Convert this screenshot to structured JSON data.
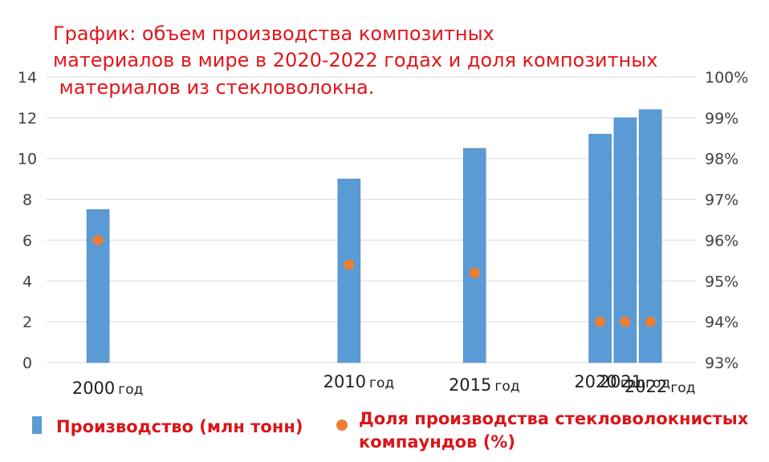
{
  "colors": {
    "title": "#e3151a",
    "bar": "#5b9bd5",
    "bar_stroke": "#4a86c0",
    "point": "#ed7d31",
    "legend_text": "#d8161b",
    "grid": "#d9d9d9",
    "axis_text": "#404040"
  },
  "chart_data": {
    "type": "bar",
    "title_lines": [
      "График: объем производства композитных",
      "материалов в мире в 2020-2022 годах и доля композитных",
      " материалов из стекловолокна."
    ],
    "categories": [
      {
        "year": "2000",
        "unit": "год"
      },
      {
        "year": "2010",
        "unit": "год"
      },
      {
        "year": "2015",
        "unit": "год"
      },
      {
        "year": "2020",
        "unit": "год"
      },
      {
        "year": "2021",
        "unit": "год"
      },
      {
        "year": "2022",
        "unit": "год"
      }
    ],
    "category_x_positions": [
      2000,
      2010,
      2015,
      2020,
      2021,
      2022
    ],
    "series": [
      {
        "name": "Производство (млн тонн)",
        "type": "bar",
        "axis": "left",
        "values": [
          7.5,
          9.0,
          10.5,
          11.2,
          12.0,
          12.4
        ]
      },
      {
        "name_lines": [
          "Доля производства стекловолокнистых",
          "компаундов (%)"
        ],
        "type": "scatter",
        "axis": "right",
        "values": [
          96.0,
          95.4,
          95.2,
          94.0,
          94.0,
          94.0
        ]
      }
    ],
    "y_left": {
      "min": 0,
      "max": 14,
      "ticks": [
        0,
        2,
        4,
        6,
        8,
        10,
        12,
        14
      ],
      "tick_labels": [
        "0",
        "2",
        "4",
        "6",
        "8",
        "10",
        "12",
        "14"
      ]
    },
    "y_right": {
      "min": 93,
      "max": 100,
      "ticks": [
        93,
        94,
        95,
        96,
        97,
        98,
        99,
        100
      ],
      "tick_labels": [
        "93%",
        "94%",
        "95%",
        "96%",
        "97%",
        "98%",
        "99%",
        "100%"
      ]
    },
    "grid": true,
    "legend_position": "bottom"
  }
}
